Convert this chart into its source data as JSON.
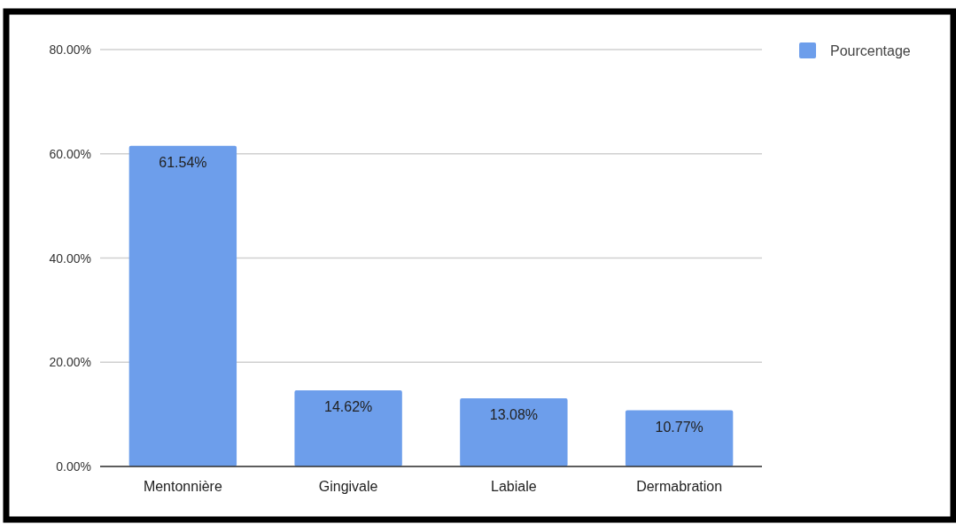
{
  "chart_data": {
    "type": "bar",
    "categories": [
      "Mentonnière",
      "Gingivale",
      "Labiale",
      "Dermabration"
    ],
    "series": [
      {
        "name": "Pourcentage",
        "color": "#6d9eeb",
        "values": [
          61.54,
          14.62,
          13.08,
          10.77
        ],
        "value_labels": [
          "61.54%",
          "14.62%",
          "13.08%",
          "10.77%"
        ]
      }
    ],
    "ylim": [
      0,
      80
    ],
    "yticks": [
      {
        "value": 0,
        "label": "0.00%"
      },
      {
        "value": 20,
        "label": "20.00%"
      },
      {
        "value": 40,
        "label": "40.00%"
      },
      {
        "value": 60,
        "label": "60.00%"
      },
      {
        "value": 80,
        "label": "80.00%"
      }
    ],
    "grid": "y",
    "legend": "top right"
  }
}
